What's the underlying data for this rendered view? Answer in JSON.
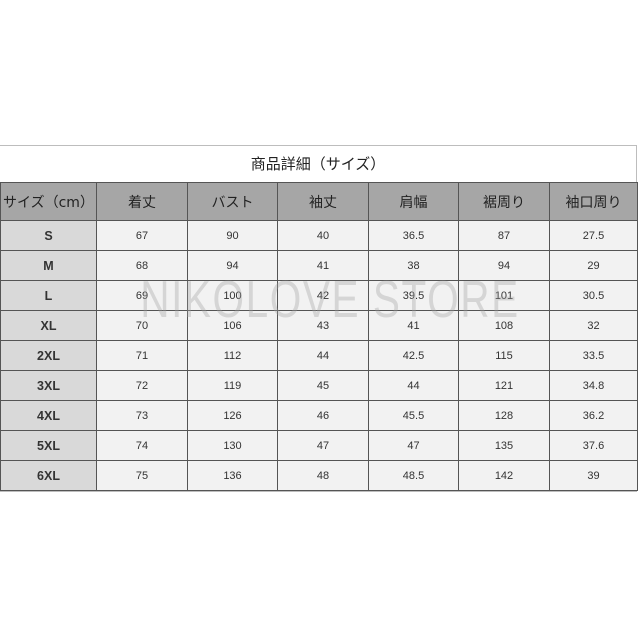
{
  "title": "商品詳細（サイズ）",
  "headers": [
    "サイズ（cm）",
    "着丈",
    "バスト",
    "袖丈",
    "肩幅",
    "裾周り",
    "袖口周り"
  ],
  "rows": [
    [
      "S",
      "67",
      "90",
      "40",
      "36.5",
      "87",
      "27.5"
    ],
    [
      "M",
      "68",
      "94",
      "41",
      "38",
      "94",
      "29"
    ],
    [
      "L",
      "69",
      "100",
      "42",
      "39.5",
      "101",
      "30.5"
    ],
    [
      "XL",
      "70",
      "106",
      "43",
      "41",
      "108",
      "32"
    ],
    [
      "2XL",
      "71",
      "112",
      "44",
      "42.5",
      "115",
      "33.5"
    ],
    [
      "3XL",
      "72",
      "119",
      "45",
      "44",
      "121",
      "34.8"
    ],
    [
      "4XL",
      "73",
      "126",
      "46",
      "45.5",
      "128",
      "36.2"
    ],
    [
      "5XL",
      "74",
      "130",
      "47",
      "47",
      "135",
      "37.6"
    ],
    [
      "6XL",
      "75",
      "136",
      "48",
      "48.5",
      "142",
      "39"
    ]
  ],
  "watermark": "NIKOLOVE STORE",
  "colors": {
    "header_bg": "#a6a6a6",
    "size_col_bg": "#d9d9d9",
    "cell_bg": "#f2f2f2",
    "border": "#555555"
  }
}
